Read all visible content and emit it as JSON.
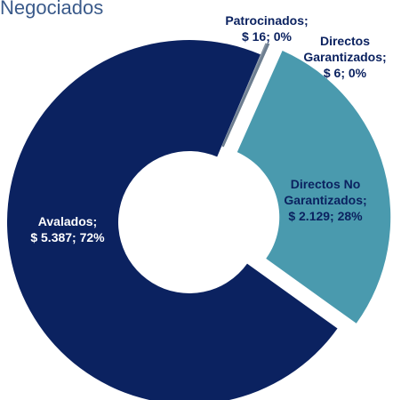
{
  "chart_data": {
    "type": "donut",
    "title": "Negociados",
    "categories": [
      "Directos No Garantizados;",
      "Avalados;",
      "Patrocinados;",
      "Directos Garantizados;"
    ],
    "values": [
      2129,
      5387,
      16,
      6
    ],
    "value_labels": [
      "$ 2.129; 28%",
      "$ 5.387; 72%",
      "$ 16; 0%",
      "$ 6; 0%"
    ],
    "colors": [
      "#4a9aae",
      "#0b2260",
      "#8794a3",
      "#6d7e90"
    ]
  }
}
